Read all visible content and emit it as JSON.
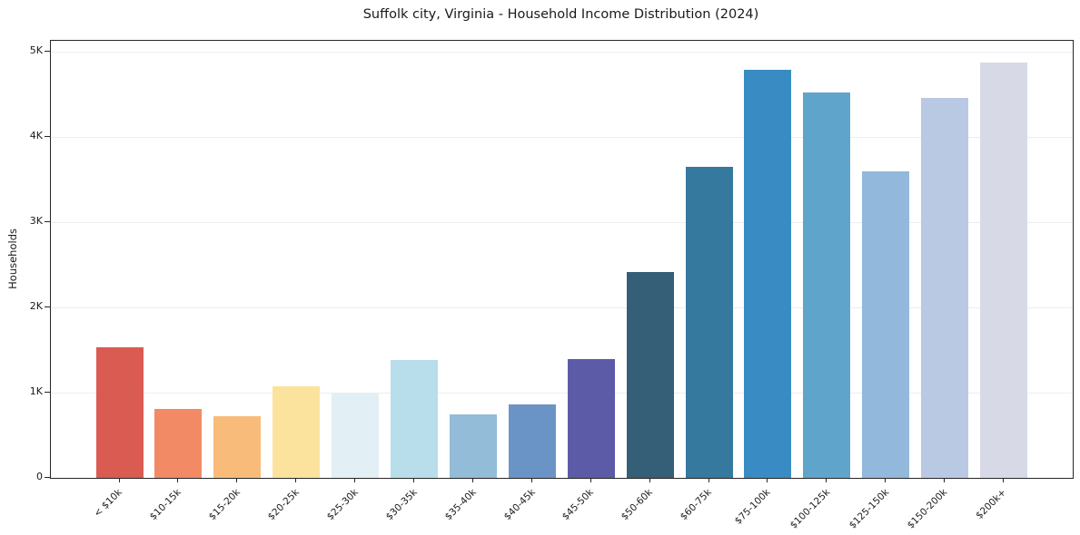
{
  "figure": {
    "background": "#ffffff"
  },
  "chart_data": {
    "type": "bar",
    "title": "Suffolk city, Virginia - Household Income Distribution (2024)",
    "ylabel": "Households",
    "xlabel": "",
    "categories": [
      "< $10k",
      "$10-15k",
      "$15-20k",
      "$20-25k",
      "$25-30k",
      "$30-35k",
      "$35-40k",
      "$40-45k",
      "$45-50k",
      "$50-60k",
      "$60-75k",
      "$75-100k",
      "$100-125k",
      "$125-150k",
      "$150-200k",
      "$200k+"
    ],
    "values": [
      1530,
      810,
      720,
      1080,
      990,
      1380,
      745,
      860,
      1390,
      2420,
      3650,
      4790,
      4520,
      3600,
      4460,
      4870
    ],
    "bar_colors": [
      "#d95b52",
      "#f28a66",
      "#f9bb7a",
      "#fbe39d",
      "#e2eff5",
      "#b8ddeb",
      "#92bcd8",
      "#6b94c6",
      "#5c5ba8",
      "#355f77",
      "#35799e",
      "#388cc3",
      "#5fa5cb",
      "#92b8db",
      "#b9c9e4",
      "#d7d9e7"
    ],
    "yticks": [
      {
        "value": 0,
        "label": "0"
      },
      {
        "value": 1000,
        "label": "1K"
      },
      {
        "value": 2000,
        "label": "2K"
      },
      {
        "value": 3000,
        "label": "3K"
      },
      {
        "value": 4000,
        "label": "4K"
      },
      {
        "value": 5000,
        "label": "5K"
      }
    ],
    "ylim": [
      0,
      5128
    ],
    "grid": true,
    "legend": "none",
    "gridline_color": "#eaedee",
    "axis_color": "#262626",
    "text_color": "#1a1a1a"
  }
}
